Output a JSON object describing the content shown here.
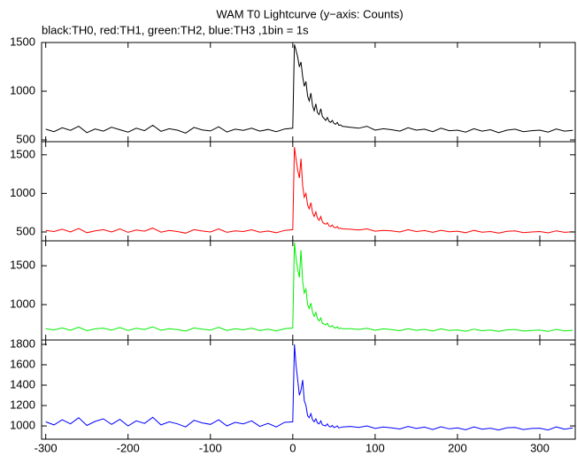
{
  "chart_data": [
    {
      "type": "line",
      "title": "WAM T0 Lightcurve (y−axis: Counts)",
      "subtitle": "black:TH0, red:TH1, green:TH2, blue:TH3 ,1bin = 1s",
      "x": [
        -300,
        -290,
        -280,
        -270,
        -260,
        -250,
        -240,
        -230,
        -220,
        -210,
        -200,
        -190,
        -180,
        -170,
        -160,
        -150,
        -140,
        -130,
        -120,
        -110,
        -100,
        -90,
        -80,
        -70,
        -60,
        -50,
        -40,
        -30,
        -20,
        -10,
        0,
        2,
        4,
        6,
        8,
        10,
        12,
        14,
        16,
        18,
        20,
        22,
        24,
        26,
        28,
        30,
        32,
        34,
        36,
        38,
        40,
        42,
        44,
        46,
        48,
        50,
        52,
        54,
        56,
        58,
        60,
        70,
        80,
        90,
        100,
        110,
        120,
        130,
        140,
        150,
        160,
        170,
        180,
        190,
        200,
        210,
        220,
        230,
        240,
        250,
        260,
        270,
        280,
        290,
        300,
        310,
        320,
        330,
        340
      ],
      "color": "#000000",
      "values": [
        610,
        585,
        625,
        598,
        640,
        575,
        612,
        590,
        630,
        605,
        580,
        620,
        595,
        650,
        588,
        615,
        600,
        570,
        628,
        603,
        592,
        635,
        581,
        610,
        598,
        620,
        590,
        607,
        585,
        612,
        620,
        1480,
        1420,
        1350,
        1250,
        1300,
        1150,
        1050,
        1100,
        950,
        900,
        980,
        850,
        800,
        870,
        780,
        760,
        820,
        740,
        720,
        700,
        730,
        690,
        680,
        700,
        670,
        660,
        680,
        650,
        655,
        640,
        630,
        620,
        640,
        600,
        615,
        605,
        590,
        625,
        600,
        610,
        585,
        620,
        595,
        600,
        580,
        615,
        590,
        605,
        575,
        600,
        610,
        585,
        595,
        600,
        580,
        612,
        590,
        598
      ],
      "xlim": [
        -305,
        343
      ],
      "xticks": [
        -300,
        -200,
        -100,
        0,
        100,
        200,
        300
      ],
      "ylim": [
        482,
        1500
      ],
      "yticks": [
        500,
        1000,
        1500
      ]
    },
    {
      "type": "line",
      "x": [
        -300,
        -290,
        -280,
        -270,
        -260,
        -250,
        -240,
        -230,
        -220,
        -210,
        -200,
        -190,
        -180,
        -170,
        -160,
        -150,
        -140,
        -130,
        -120,
        -110,
        -100,
        -90,
        -80,
        -70,
        -60,
        -50,
        -40,
        -30,
        -20,
        -10,
        0,
        2,
        4,
        6,
        8,
        10,
        12,
        14,
        16,
        18,
        20,
        22,
        24,
        26,
        28,
        30,
        32,
        34,
        36,
        38,
        40,
        42,
        44,
        46,
        48,
        50,
        52,
        54,
        56,
        58,
        60,
        70,
        80,
        90,
        100,
        110,
        120,
        130,
        140,
        150,
        160,
        170,
        180,
        190,
        200,
        210,
        220,
        230,
        240,
        250,
        260,
        270,
        280,
        290,
        300,
        310,
        320,
        330,
        340
      ],
      "color": "#ff0000",
      "values": [
        520,
        505,
        535,
        500,
        545,
        490,
        515,
        530,
        500,
        540,
        495,
        525,
        510,
        550,
        498,
        520,
        505,
        485,
        530,
        512,
        500,
        540,
        495,
        515,
        505,
        528,
        498,
        512,
        490,
        520,
        530,
        1600,
        1450,
        1300,
        1200,
        1450,
        1100,
        950,
        1000,
        850,
        800,
        880,
        750,
        700,
        760,
        680,
        650,
        700,
        630,
        610,
        600,
        620,
        580,
        570,
        590,
        560,
        555,
        570,
        545,
        550,
        540,
        535,
        525,
        540,
        510,
        520,
        515,
        500,
        530,
        505,
        518,
        495,
        522,
        502,
        510,
        490,
        520,
        498,
        505,
        485,
        508,
        515,
        492,
        500,
        505,
        488,
        515,
        495,
        502
      ],
      "xlim": [
        -305,
        343
      ],
      "xticks": [
        -300,
        -200,
        -100,
        0,
        100,
        200,
        300
      ],
      "ylim": [
        385,
        1670
      ],
      "yticks": [
        500,
        1000,
        1500
      ]
    },
    {
      "type": "line",
      "x": [
        -300,
        -290,
        -280,
        -270,
        -260,
        -250,
        -240,
        -230,
        -220,
        -210,
        -200,
        -190,
        -180,
        -170,
        -160,
        -150,
        -140,
        -130,
        -120,
        -110,
        -100,
        -90,
        -80,
        -70,
        -60,
        -50,
        -40,
        -30,
        -20,
        -10,
        0,
        2,
        4,
        6,
        8,
        10,
        12,
        14,
        16,
        18,
        20,
        22,
        24,
        26,
        28,
        30,
        32,
        34,
        36,
        38,
        40,
        42,
        44,
        46,
        48,
        50,
        52,
        54,
        56,
        58,
        60,
        70,
        80,
        90,
        100,
        110,
        120,
        130,
        140,
        150,
        160,
        170,
        180,
        190,
        200,
        210,
        220,
        230,
        240,
        250,
        260,
        270,
        280,
        290,
        300,
        310,
        320,
        330,
        340
      ],
      "color": "#00ee00",
      "values": [
        690,
        675,
        700,
        670,
        710,
        665,
        688,
        698,
        672,
        705,
        668,
        695,
        680,
        715,
        670,
        690,
        678,
        660,
        700,
        684,
        672,
        708,
        668,
        690,
        676,
        698,
        666,
        684,
        662,
        690,
        700,
        1800,
        1600,
        1450,
        1350,
        1700,
        1300,
        1150,
        1200,
        1000,
        950,
        1020,
        900,
        850,
        900,
        820,
        790,
        830,
        760,
        750,
        740,
        760,
        720,
        715,
        730,
        705,
        700,
        715,
        690,
        700,
        690,
        690,
        680,
        695,
        670,
        688,
        678,
        665,
        690,
        670,
        682,
        660,
        688,
        668,
        675,
        658,
        685,
        664,
        672,
        655,
        676,
        680,
        660,
        668,
        672,
        655,
        682,
        662,
        670
      ],
      "xlim": [
        -305,
        343
      ],
      "xticks": [
        -300,
        -200,
        -100,
        0,
        100,
        200,
        300
      ],
      "ylim": [
        545,
        1820
      ],
      "yticks": [
        1000,
        1500
      ]
    },
    {
      "type": "line",
      "x": [
        -300,
        -290,
        -280,
        -270,
        -260,
        -250,
        -240,
        -230,
        -220,
        -210,
        -200,
        -190,
        -180,
        -170,
        -160,
        -150,
        -140,
        -130,
        -120,
        -110,
        -100,
        -90,
        -80,
        -70,
        -60,
        -50,
        -40,
        -30,
        -20,
        -10,
        0,
        2,
        4,
        6,
        8,
        10,
        12,
        14,
        16,
        18,
        20,
        22,
        24,
        26,
        28,
        30,
        32,
        34,
        36,
        38,
        40,
        42,
        44,
        46,
        48,
        50,
        52,
        54,
        56,
        58,
        60,
        70,
        80,
        90,
        100,
        110,
        120,
        130,
        140,
        150,
        160,
        170,
        180,
        190,
        200,
        210,
        220,
        230,
        240,
        250,
        260,
        270,
        280,
        290,
        300,
        310,
        320,
        330,
        340
      ],
      "color": "#0000ff",
      "values": [
        1040,
        1010,
        1060,
        1020,
        1080,
        1005,
        1045,
        1070,
        1015,
        1065,
        1000,
        1050,
        1025,
        1085,
        1010,
        1040,
        1020,
        990,
        1055,
        1030,
        1015,
        1060,
        1000,
        1035,
        1020,
        1050,
        995,
        1025,
        990,
        1035,
        1040,
        1800,
        1600,
        1450,
        1300,
        1350,
        1450,
        1250,
        1200,
        1100,
        1080,
        1120,
        1060,
        1040,
        1070,
        1030,
        1020,
        1050,
        1010,
        1005,
        1000,
        1020,
        995,
        990,
        1005,
        985,
        990,
        1000,
        980,
        985,
        990,
        995,
        985,
        1000,
        975,
        990,
        980,
        970,
        995,
        975,
        988,
        965,
        992,
        972,
        980,
        962,
        990,
        968,
        978,
        960,
        982,
        985,
        965,
        975,
        978,
        960,
        990,
        968,
        980
      ],
      "xlim": [
        -305,
        343
      ],
      "xticks": [
        -300,
        -200,
        -100,
        0,
        100,
        200,
        300
      ],
      "ylim": [
        870,
        1843
      ],
      "yticks": [
        1000,
        1200,
        1400,
        1600,
        1800
      ]
    }
  ]
}
